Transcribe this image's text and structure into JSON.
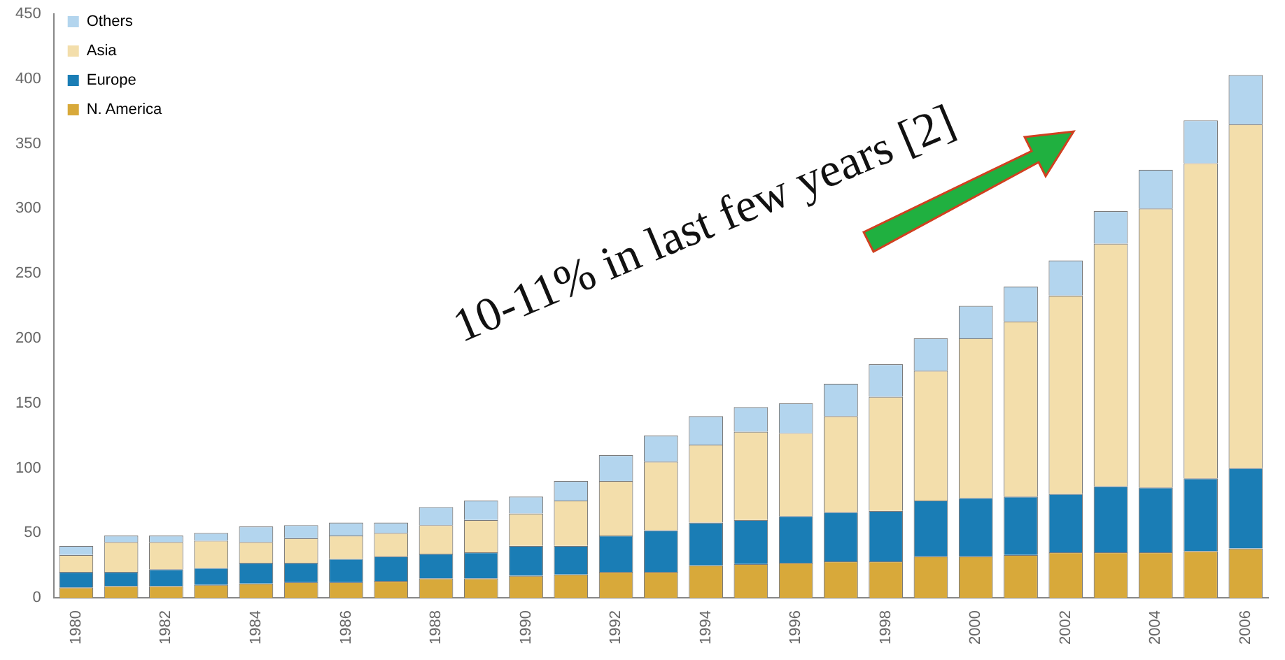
{
  "chart_data": {
    "type": "bar",
    "stacked": true,
    "categories": [
      "1980",
      null,
      "1982",
      null,
      "1984",
      null,
      "1986",
      null,
      "1988",
      null,
      "1990",
      null,
      "1992",
      null,
      "1994",
      null,
      "1996",
      null,
      "1998",
      null,
      "2000",
      null,
      "2002",
      null,
      "2004",
      null,
      "2006"
    ],
    "series": [
      {
        "name": "N. America",
        "color": "#d8a93a",
        "values": [
          8,
          9,
          9,
          10,
          11,
          12,
          12,
          13,
          15,
          15,
          17,
          18,
          20,
          20,
          25,
          26,
          27,
          28,
          28,
          32,
          32,
          33,
          35,
          35,
          35,
          36,
          38
        ]
      },
      {
        "name": "Europe",
        "color": "#1a7db5",
        "values": [
          12,
          11,
          13,
          13,
          16,
          15,
          18,
          19,
          19,
          20,
          23,
          22,
          28,
          32,
          33,
          34,
          36,
          38,
          39,
          43,
          45,
          45,
          45,
          51,
          50,
          56,
          62
        ]
      },
      {
        "name": "Asia",
        "color": "#f3deab",
        "values": [
          13,
          23,
          21,
          21,
          16,
          19,
          18,
          18,
          22,
          25,
          25,
          35,
          42,
          53,
          60,
          68,
          64,
          74,
          88,
          100,
          123,
          135,
          153,
          187,
          215,
          243,
          265
        ]
      },
      {
        "name": "Others",
        "color": "#b3d5ee",
        "values": [
          7,
          5,
          5,
          6,
          12,
          10,
          10,
          8,
          14,
          15,
          13,
          15,
          20,
          20,
          22,
          19,
          23,
          25,
          25,
          25,
          25,
          27,
          27,
          25,
          30,
          33,
          38
        ]
      }
    ],
    "ylim": [
      0,
      450
    ],
    "yticks": [
      0,
      50,
      100,
      150,
      200,
      250,
      300,
      350,
      400,
      450
    ],
    "grid": false,
    "legend": "top left",
    "annotations": [
      "10-11% in last few years [2]"
    ]
  }
}
